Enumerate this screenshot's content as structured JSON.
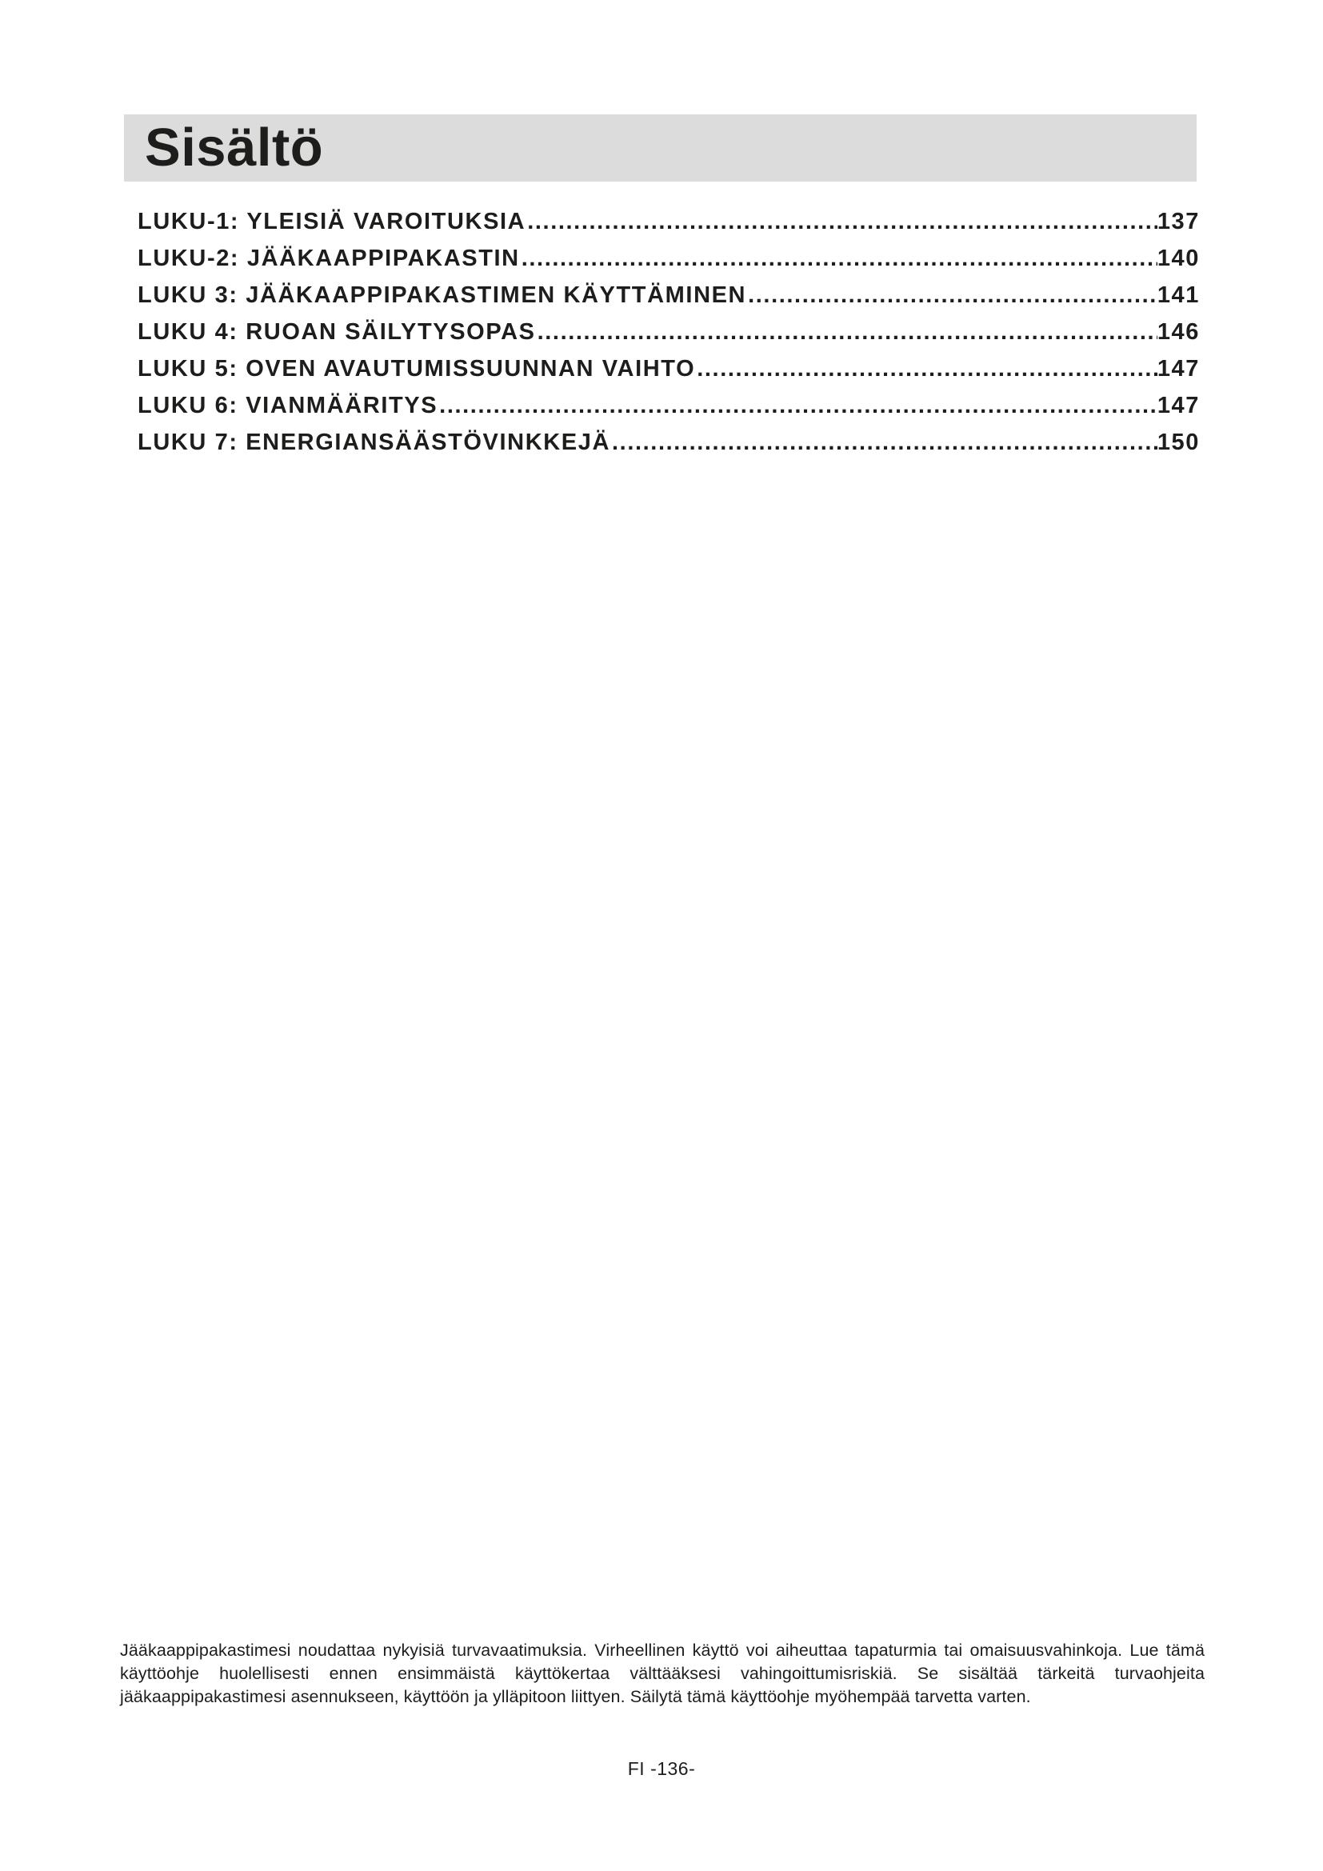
{
  "page": {
    "title": "Sisältö",
    "footer": "FI -136-"
  },
  "toc": {
    "entries": [
      {
        "label": "LUKU-1: YLEISIÄ VAROITUKSIA",
        "page": "137"
      },
      {
        "label": "LUKU-2: JÄÄKAAPPIPAKASTIN",
        "page": "140"
      },
      {
        "label": "LUKU 3: JÄÄKAAPPIPAKASTIMEN KÄYTTÄMINEN",
        "page": "141"
      },
      {
        "label": "LUKU 4: RUOAN SÄILYTYSOPAS",
        "page": "146"
      },
      {
        "label": "LUKU 5: OVEN AVAUTUMISSUUNNAN VAIHTO",
        "page": "147"
      },
      {
        "label": "LUKU 6: VIANMÄÄRITYS",
        "page": "147"
      },
      {
        "label": "LUKU 7: ENERGIANSÄÄSTÖVINKKEJÄ",
        "page": "150"
      }
    ]
  },
  "notice": {
    "text": "Jääkaappipakastimesi noudattaa nykyisiä turvavaatimuksia. Virheellinen käyttö voi aiheuttaa tapaturmia tai omaisuusvahinkoja. Lue tämä käyttöohje huolellisesti ennen ensimmäistä käyttökertaa välttääksesi vahingoittumisriskiä. Se sisältää tärkeitä turvaohjeita jääkaappipakastimesi asennukseen, käyttöön ja ylläpitoon liittyen. Säilytä tämä käyttöohje myöhempää tarvetta varten."
  },
  "colors": {
    "title_bar_bg": "#dcdcdc",
    "text": "#1d1d1b"
  }
}
